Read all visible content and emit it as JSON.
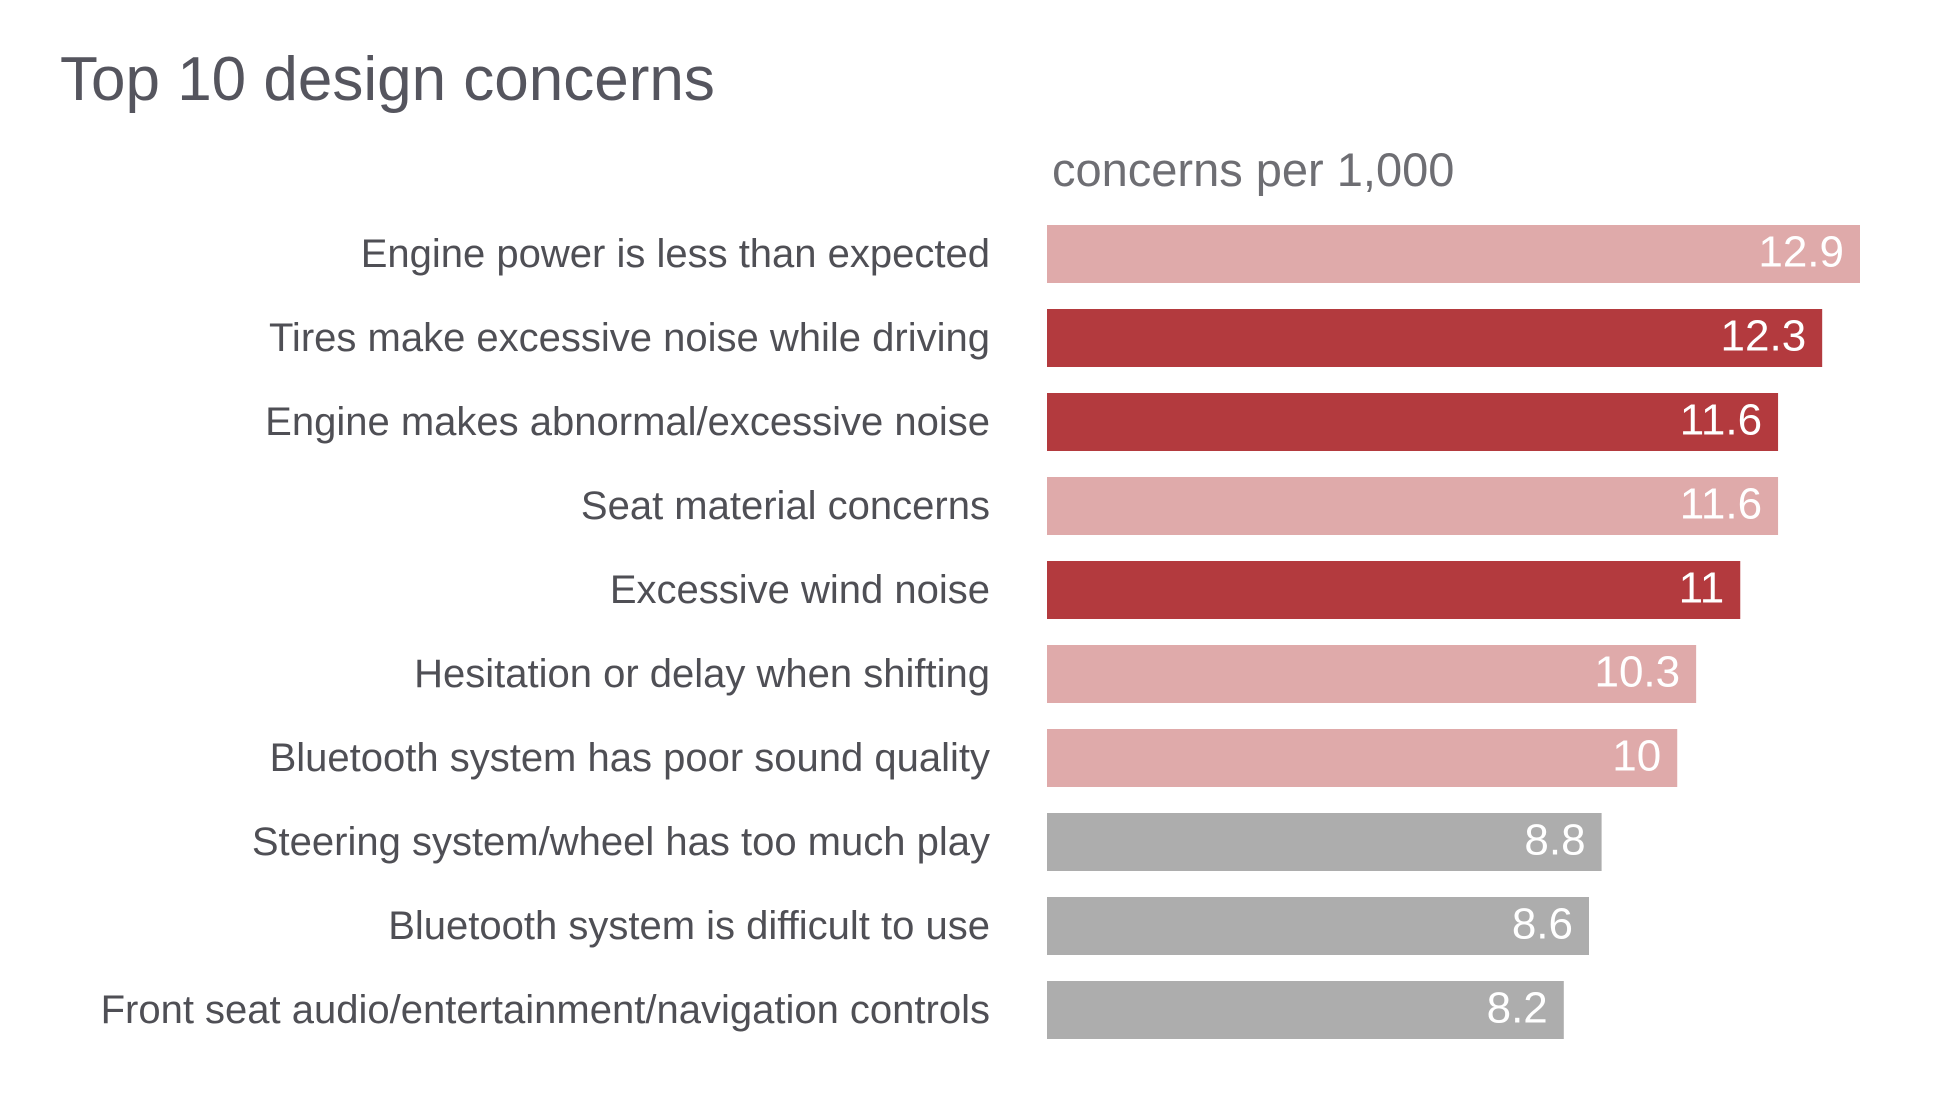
{
  "chart_title": "Top 10 design concerns",
  "chart_data": {
    "type": "bar",
    "orientation": "horizontal",
    "title": "Top 10 design concerns",
    "xlabel": "concerns per 1,000",
    "ylabel": "",
    "xlim": [
      0,
      12.9
    ],
    "grid": false,
    "categories": [
      "Engine power is less than expected",
      "Tires make excessive noise while driving",
      "Engine makes abnormal/excessive noise",
      "Seat material concerns",
      "Excessive wind noise",
      "Hesitation or delay when shifting",
      "Bluetooth system has poor sound quality",
      "Steering system/wheel has too much play",
      "Bluetooth system is difficult to use",
      "Front seat audio/entertainment/navigation controls"
    ],
    "values": [
      12.9,
      12.3,
      11.6,
      11.6,
      11,
      10.3,
      10,
      8.8,
      8.6,
      8.2
    ],
    "value_labels": [
      "12.9",
      "12.3",
      "11.6",
      "11.6",
      "11",
      "10.3",
      "10",
      "8.8",
      "8.6",
      "8.2"
    ],
    "bar_colors": [
      "#dfaaaa",
      "#b33a3e",
      "#b33a3e",
      "#dfaaaa",
      "#b33a3e",
      "#dfaaaa",
      "#dfaaaa",
      "#adadad",
      "#adadad",
      "#adadad"
    ]
  }
}
